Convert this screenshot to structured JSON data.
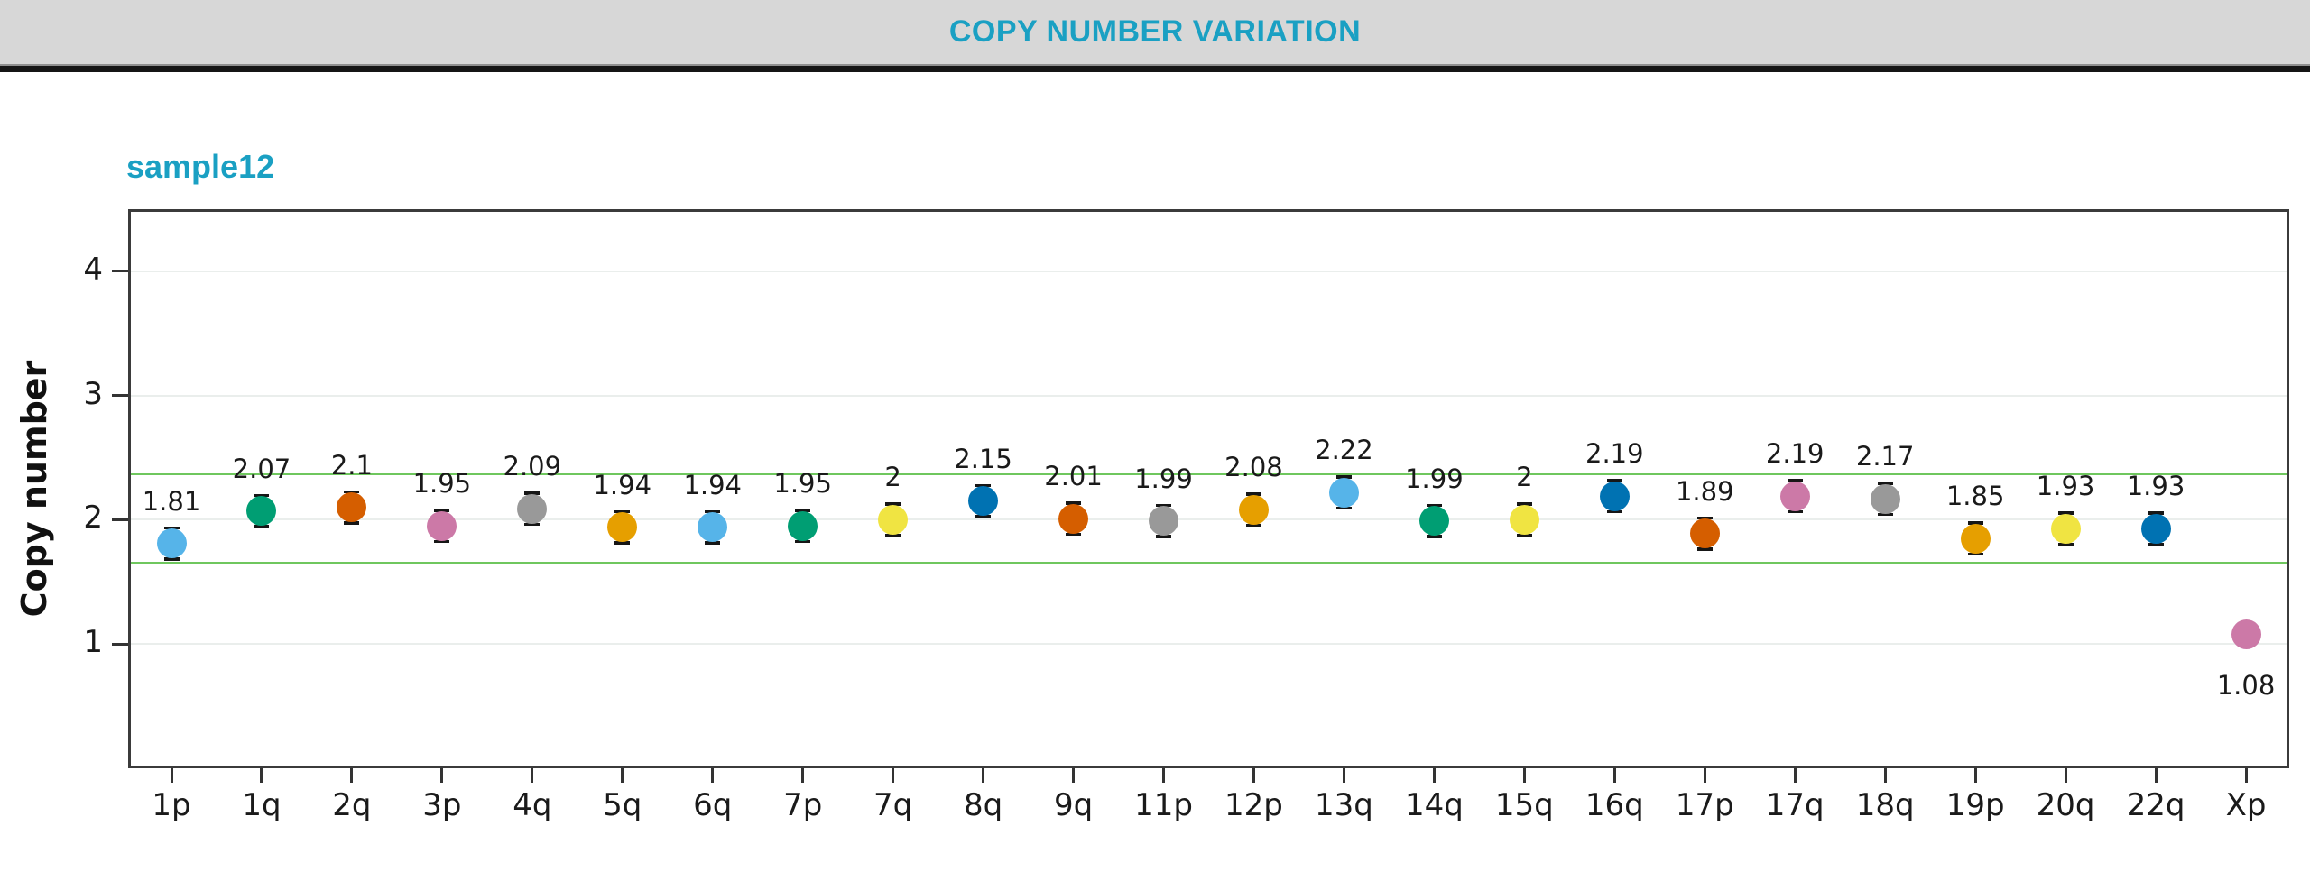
{
  "header": {
    "title": "COPY NUMBER VARIATION"
  },
  "colors": {
    "accent_teal": "#1aa0c3",
    "header_band": "#d7d7d7",
    "plot_border": "#3b3b3b",
    "grid_line": "#eaeeec",
    "threshold_green": "#6fc75e",
    "error_bar": "#161616",
    "tick": "#333333",
    "label_text": "#1a1a1a"
  },
  "chart_data": {
    "type": "scatter",
    "title": "sample12",
    "xlabel": "",
    "ylabel": "Copy number",
    "ylim": [
      0,
      4.5
    ],
    "yticks": [
      1,
      2,
      3,
      4
    ],
    "grid": true,
    "legend": "none",
    "threshold_lines": {
      "upper": 2.37,
      "lower": 1.65
    },
    "categories": [
      "1p",
      "1q",
      "2q",
      "3p",
      "4q",
      "5q",
      "6q",
      "7p",
      "7q",
      "8q",
      "9q",
      "11p",
      "12p",
      "13q",
      "14q",
      "15q",
      "16q",
      "17p",
      "17q",
      "18q",
      "19p",
      "20q",
      "22q",
      "Xp"
    ],
    "values": [
      1.81,
      2.07,
      2.1,
      1.95,
      2.09,
      1.94,
      1.94,
      1.95,
      2,
      2.15,
      2.01,
      1.99,
      2.08,
      2.22,
      1.99,
      2,
      2.19,
      1.89,
      2.19,
      2.17,
      1.85,
      1.93,
      1.93,
      1.08
    ],
    "points": [
      {
        "category": "1p",
        "value": 1.81,
        "label": "1.81",
        "color": "#56B4E9",
        "error_caps": true,
        "label_below": false
      },
      {
        "category": "1q",
        "value": 2.07,
        "label": "2.07",
        "color": "#009E73",
        "error_caps": true,
        "label_below": false
      },
      {
        "category": "2q",
        "value": 2.1,
        "label": "2.1",
        "color": "#D55E00",
        "error_caps": true,
        "label_below": false
      },
      {
        "category": "3p",
        "value": 1.95,
        "label": "1.95",
        "color": "#CC79A7",
        "error_caps": true,
        "label_below": false
      },
      {
        "category": "4q",
        "value": 2.09,
        "label": "2.09",
        "color": "#999999",
        "error_caps": true,
        "label_below": false
      },
      {
        "category": "5q",
        "value": 1.94,
        "label": "1.94",
        "color": "#E69F00",
        "error_caps": true,
        "label_below": false
      },
      {
        "category": "6q",
        "value": 1.94,
        "label": "1.94",
        "color": "#56B4E9",
        "error_caps": true,
        "label_below": false
      },
      {
        "category": "7p",
        "value": 1.95,
        "label": "1.95",
        "color": "#009E73",
        "error_caps": true,
        "label_below": false
      },
      {
        "category": "7q",
        "value": 2,
        "label": "2",
        "color": "#F0E442",
        "error_caps": true,
        "label_below": false
      },
      {
        "category": "8q",
        "value": 2.15,
        "label": "2.15",
        "color": "#0072B2",
        "error_caps": true,
        "label_below": false
      },
      {
        "category": "9q",
        "value": 2.01,
        "label": "2.01",
        "color": "#D55E00",
        "error_caps": true,
        "label_below": false
      },
      {
        "category": "11p",
        "value": 1.99,
        "label": "1.99",
        "color": "#999999",
        "error_caps": true,
        "label_below": false
      },
      {
        "category": "12p",
        "value": 2.08,
        "label": "2.08",
        "color": "#E69F00",
        "error_caps": true,
        "label_below": false
      },
      {
        "category": "13q",
        "value": 2.22,
        "label": "2.22",
        "color": "#56B4E9",
        "error_caps": true,
        "label_below": false
      },
      {
        "category": "14q",
        "value": 1.99,
        "label": "1.99",
        "color": "#009E73",
        "error_caps": true,
        "label_below": false
      },
      {
        "category": "15q",
        "value": 2,
        "label": "2",
        "color": "#F0E442",
        "error_caps": true,
        "label_below": false
      },
      {
        "category": "16q",
        "value": 2.19,
        "label": "2.19",
        "color": "#0072B2",
        "error_caps": true,
        "label_below": false
      },
      {
        "category": "17p",
        "value": 1.89,
        "label": "1.89",
        "color": "#D55E00",
        "error_caps": true,
        "label_below": false
      },
      {
        "category": "17q",
        "value": 2.19,
        "label": "2.19",
        "color": "#CC79A7",
        "error_caps": true,
        "label_below": false
      },
      {
        "category": "18q",
        "value": 2.17,
        "label": "2.17",
        "color": "#999999",
        "error_caps": true,
        "label_below": false
      },
      {
        "category": "19p",
        "value": 1.85,
        "label": "1.85",
        "color": "#E69F00",
        "error_caps": true,
        "label_below": false
      },
      {
        "category": "20q",
        "value": 1.93,
        "label": "1.93",
        "color": "#F0E442",
        "error_caps": true,
        "label_below": false
      },
      {
        "category": "22q",
        "value": 1.93,
        "label": "1.93",
        "color": "#0072B2",
        "error_caps": true,
        "label_below": false
      },
      {
        "category": "Xp",
        "value": 1.08,
        "label": "1.08",
        "color": "#CC79A7",
        "error_caps": false,
        "label_below": true
      }
    ]
  }
}
